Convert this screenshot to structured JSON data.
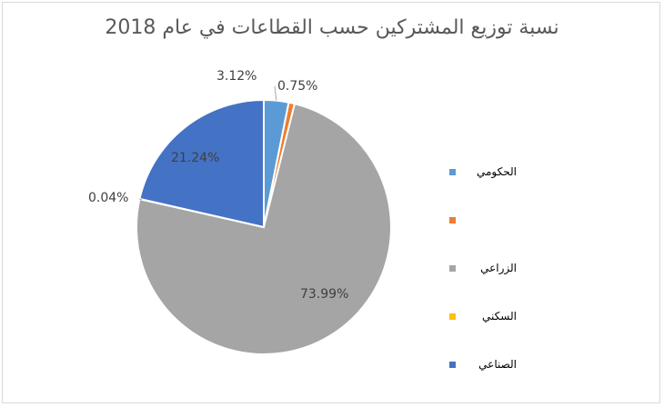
{
  "chart_data": {
    "type": "pie",
    "title": "نسبة توزيع المشتركين حسب القطاعات في عام 2018",
    "slices": [
      {
        "label": "الحكومي",
        "value": 3.12,
        "value_label": "3.12%",
        "color": "#5b9bd5"
      },
      {
        "label": "",
        "value": 0.75,
        "value_label": "0.75%",
        "color": "#ed7d31"
      },
      {
        "label": "الزراعي",
        "value": 73.99,
        "value_label": "73.99%",
        "color": "#a5a5a5"
      },
      {
        "label": "السكني",
        "value": 0.04,
        "value_label": "0.04%",
        "color": "#ffc000"
      },
      {
        "label": "الصناعي",
        "value": 21.24,
        "value_label": "21.24%",
        "color": "#4472c4"
      }
    ],
    "start_angle_deg": 0,
    "direction": "clockwise",
    "legend_position": "right"
  }
}
